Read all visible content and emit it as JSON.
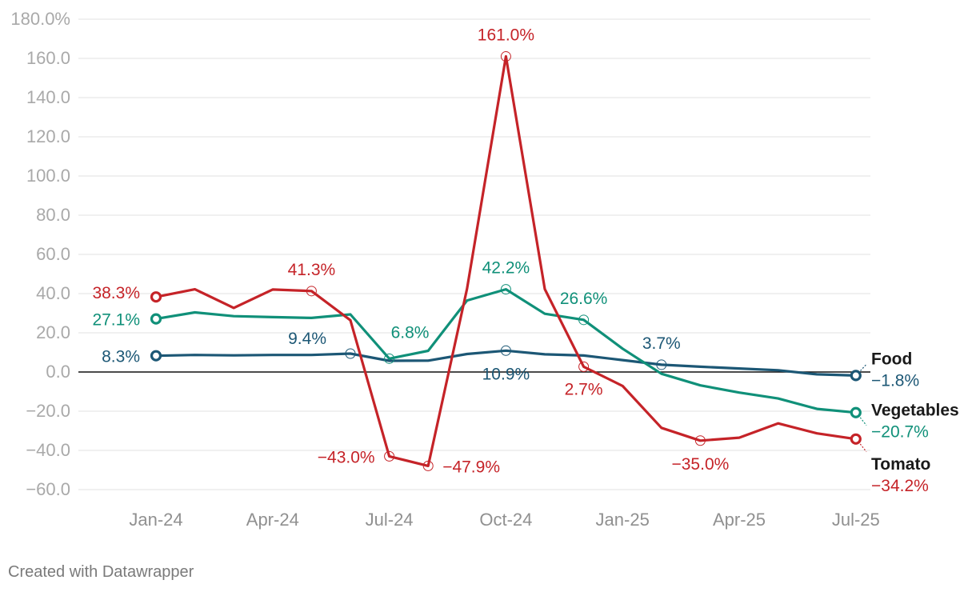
{
  "chart_data": {
    "type": "line",
    "title": "",
    "xlabel": "",
    "ylabel": "",
    "ylim": [
      -60,
      180
    ],
    "yticks": [
      180,
      160,
      140,
      120,
      100,
      80,
      60,
      40,
      20,
      0,
      -20,
      -40,
      -60
    ],
    "ytick_labels": [
      "180.0%",
      "160.0",
      "140.0",
      "120.0",
      "100.0",
      "80.0",
      "60.0",
      "40.0",
      "20.0",
      "0.0",
      "−20.0",
      "−40.0",
      "−60.0"
    ],
    "x": [
      "2024-01",
      "2024-02",
      "2024-03",
      "2024-04",
      "2024-05",
      "2024-06",
      "2024-07",
      "2024-08",
      "2024-09",
      "2024-10",
      "2024-11",
      "2024-12",
      "2025-01",
      "2025-02",
      "2025-03",
      "2025-04",
      "2025-05",
      "2025-06",
      "2025-07"
    ],
    "xticks": [
      {
        "x": "2024-01",
        "label": "Jan-24"
      },
      {
        "x": "2024-04",
        "label": "Apr-24"
      },
      {
        "x": "2024-07",
        "label": "Jul-24"
      },
      {
        "x": "2024-10",
        "label": "Oct-24"
      },
      {
        "x": "2025-01",
        "label": "Jan-25"
      },
      {
        "x": "2025-04",
        "label": "Apr-25"
      },
      {
        "x": "2025-07",
        "label": "Jul-25"
      }
    ],
    "grid": true,
    "series": [
      {
        "name": "Food",
        "color": "#1c5775",
        "values": [
          8.3,
          8.7,
          8.5,
          8.7,
          8.7,
          9.4,
          5.7,
          5.8,
          9.2,
          10.9,
          9.0,
          8.4,
          6.1,
          3.7,
          2.7,
          1.8,
          0.9,
          -1.2,
          -1.8
        ],
        "labels": [
          {
            "i": 0,
            "text": "8.3%"
          },
          {
            "i": 5,
            "text": "9.4%"
          },
          {
            "i": 9,
            "text": "10.9%"
          },
          {
            "i": 13,
            "text": "3.7%"
          }
        ],
        "end_value_label": "−1.8%"
      },
      {
        "name": "Vegetables",
        "color": "#109079",
        "values": [
          27.1,
          30.4,
          28.5,
          28.0,
          27.6,
          29.4,
          6.8,
          10.8,
          36.5,
          42.2,
          29.7,
          26.6,
          11.9,
          -0.9,
          -6.8,
          -10.5,
          -13.5,
          -18.8,
          -20.7
        ],
        "labels": [
          {
            "i": 0,
            "text": "27.1%"
          },
          {
            "i": 6,
            "text": "6.8%"
          },
          {
            "i": 9,
            "text": "42.2%"
          },
          {
            "i": 11,
            "text": "26.6%"
          }
        ],
        "end_value_label": "−20.7%"
      },
      {
        "name": "Tomato",
        "color": "#c52328",
        "values": [
          38.3,
          42.2,
          32.7,
          42.1,
          41.3,
          26.4,
          -43.0,
          -47.9,
          42.5,
          161.0,
          42.3,
          2.7,
          -7.1,
          -28.5,
          -35.0,
          -33.5,
          -26.2,
          -31.3,
          -34.2
        ],
        "labels": [
          {
            "i": 0,
            "text": "38.3%"
          },
          {
            "i": 4,
            "text": "41.3%"
          },
          {
            "i": 6,
            "text": "−43.0%"
          },
          {
            "i": 7,
            "text": "−47.9%"
          },
          {
            "i": 9,
            "text": "161.0%"
          },
          {
            "i": 11,
            "text": "2.7%"
          },
          {
            "i": 14,
            "text": "−35.0%"
          }
        ],
        "end_value_label": "−34.2%"
      }
    ]
  },
  "footer": {
    "credit": "Created with Datawrapper"
  }
}
